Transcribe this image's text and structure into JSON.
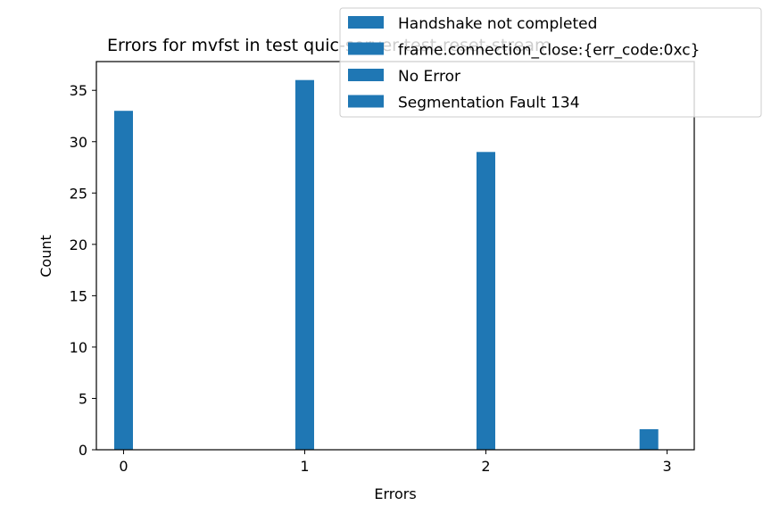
{
  "chart_data": {
    "type": "bar",
    "title": "Errors for mvfst in test quic-server-test-reset-stream",
    "xlabel": "Errors",
    "ylabel": "Count",
    "x_ticks": [
      0,
      1,
      2,
      3
    ],
    "y_ticks": [
      0,
      5,
      10,
      15,
      20,
      25,
      30,
      35
    ],
    "xlim": [
      -0.15,
      3.15
    ],
    "ylim": [
      0,
      37.8
    ],
    "bar_color": "#1f77b4",
    "bars": [
      {
        "x": 0.0,
        "value": 33
      },
      {
        "x": 1.0,
        "value": 36
      },
      {
        "x": 2.0,
        "value": 29
      },
      {
        "x": 2.9,
        "value": 2
      }
    ],
    "legend": {
      "placement": "top-right",
      "entries": [
        "Handshake not completed",
        "frame.connection_close:{err_code:0xc}",
        "No Error",
        "Segmentation Fault 134"
      ]
    },
    "grid": false
  }
}
